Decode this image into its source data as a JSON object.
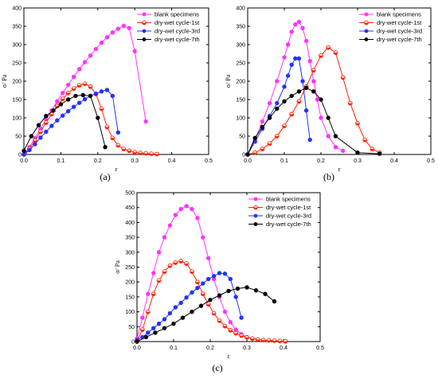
{
  "colors": {
    "blank": "#ff33ff",
    "cycle1": "#ff2200",
    "cycle3": "#2233ff",
    "cycle7": "#000000"
  },
  "chart_data": [
    {
      "type": "line",
      "caption": "(a)",
      "xlabel": "ε",
      "ylabel": "σ/ Pa",
      "xlim": [
        0,
        0.5
      ],
      "ylim": [
        0,
        400
      ],
      "xticks": [
        "0.0",
        "0.1",
        "0.2",
        "0.3",
        "0.4",
        "0.5"
      ],
      "yticks": [
        "0",
        "50",
        "100",
        "150",
        "200",
        "250",
        "300",
        "350",
        "400"
      ],
      "legend_position": "top-right",
      "series": [
        {
          "name": "blank specimens",
          "color_key": "blank",
          "marker": "filled-circle",
          "x": [
            0.003,
            0.015,
            0.03,
            0.045,
            0.06,
            0.075,
            0.09,
            0.105,
            0.12,
            0.135,
            0.15,
            0.165,
            0.18,
            0.195,
            0.21,
            0.225,
            0.24,
            0.255,
            0.27,
            0.285,
            0.3,
            0.33
          ],
          "y": [
            5,
            20,
            45,
            70,
            95,
            120,
            145,
            168,
            190,
            212,
            233,
            252,
            270,
            288,
            305,
            320,
            333,
            343,
            351,
            345,
            282,
            90
          ]
        },
        {
          "name": "dry-wet cycle-1st",
          "color_key": "cycle1",
          "marker": "half-circle",
          "x": [
            0.0,
            0.015,
            0.03,
            0.045,
            0.06,
            0.075,
            0.09,
            0.105,
            0.12,
            0.135,
            0.15,
            0.165,
            0.18,
            0.195,
            0.21,
            0.225,
            0.24,
            0.255,
            0.27,
            0.285,
            0.3,
            0.315,
            0.33,
            0.345,
            0.36
          ],
          "y": [
            0,
            15,
            38,
            62,
            87,
            110,
            132,
            152,
            168,
            180,
            189,
            193,
            185,
            165,
            125,
            75,
            45,
            25,
            15,
            10,
            6,
            4,
            3,
            2,
            1
          ]
        },
        {
          "name": "dry-wet cycle-3rd",
          "color_key": "cycle3",
          "marker": "filled-circle",
          "x": [
            0.0,
            0.015,
            0.03,
            0.045,
            0.06,
            0.075,
            0.09,
            0.105,
            0.12,
            0.135,
            0.15,
            0.165,
            0.18,
            0.195,
            0.21,
            0.225,
            0.24,
            0.255
          ],
          "y": [
            0,
            12,
            28,
            46,
            62,
            78,
            93,
            106,
            118,
            130,
            141,
            151,
            160,
            166,
            172,
            176,
            160,
            60
          ]
        },
        {
          "name": "dry-wet cycle-7th",
          "color_key": "cycle7",
          "marker": "filled-circle",
          "x": [
            0.0,
            0.02,
            0.04,
            0.06,
            0.08,
            0.1,
            0.12,
            0.14,
            0.16,
            0.18,
            0.2,
            0.22
          ],
          "y": [
            10,
            50,
            80,
            105,
            120,
            137,
            150,
            160,
            162,
            160,
            100,
            20
          ]
        }
      ]
    },
    {
      "type": "line",
      "caption": "(b)",
      "xlabel": "ε",
      "ylabel": "σ/ Pa",
      "xlim": [
        0,
        0.5
      ],
      "ylim": [
        0,
        400
      ],
      "xticks": [
        "0.0",
        "0.1",
        "0.2",
        "0.3",
        "0.4",
        "0.5"
      ],
      "yticks": [
        "0",
        "50",
        "100",
        "150",
        "200",
        "250",
        "300",
        "350",
        "400"
      ],
      "legend_position": "top-right",
      "series": [
        {
          "name": "blank specimens",
          "color_key": "blank",
          "marker": "filled-circle",
          "x": [
            0.0,
            0.02,
            0.04,
            0.06,
            0.08,
            0.1,
            0.11,
            0.12,
            0.13,
            0.14,
            0.15,
            0.16,
            0.17,
            0.18,
            0.19,
            0.2,
            0.22,
            0.24,
            0.26
          ],
          "y": [
            0,
            40,
            90,
            140,
            200,
            265,
            300,
            335,
            355,
            362,
            345,
            310,
            255,
            200,
            150,
            100,
            50,
            20,
            10
          ]
        },
        {
          "name": "dry-wet cycle-1st",
          "color_key": "cycle1",
          "marker": "half-circle",
          "x": [
            0.0,
            0.02,
            0.04,
            0.06,
            0.08,
            0.1,
            0.12,
            0.14,
            0.16,
            0.18,
            0.2,
            0.22,
            0.24,
            0.26,
            0.28,
            0.3,
            0.32,
            0.34,
            0.36
          ],
          "y": [
            0,
            5,
            15,
            30,
            50,
            78,
            110,
            145,
            185,
            230,
            270,
            292,
            278,
            210,
            140,
            85,
            40,
            15,
            5
          ]
        },
        {
          "name": "dry-wet cycle-3rd",
          "color_key": "cycle3",
          "marker": "filled-circle",
          "x": [
            0.0,
            0.02,
            0.04,
            0.06,
            0.08,
            0.1,
            0.11,
            0.12,
            0.13,
            0.14,
            0.15,
            0.16,
            0.17
          ],
          "y": [
            0,
            35,
            70,
            105,
            140,
            185,
            215,
            245,
            262,
            262,
            200,
            120,
            40
          ]
        },
        {
          "name": "dry-wet cycle-7th",
          "color_key": "cycle7",
          "marker": "filled-circle",
          "x": [
            0.0,
            0.02,
            0.04,
            0.06,
            0.08,
            0.1,
            0.12,
            0.14,
            0.16,
            0.18,
            0.2,
            0.22,
            0.24,
            0.3,
            0.36
          ],
          "y": [
            0,
            45,
            75,
            100,
            125,
            145,
            160,
            172,
            182,
            172,
            150,
            100,
            50,
            5,
            2
          ]
        }
      ]
    },
    {
      "type": "line",
      "caption": "(c)",
      "xlabel": "ε",
      "ylabel": "σ/ Pa",
      "xlim": [
        0,
        0.5
      ],
      "ylim": [
        0,
        500
      ],
      "xticks": [
        "0.0",
        "0.1",
        "0.2",
        "0.3",
        "0.4",
        "0.5"
      ],
      "yticks": [
        "0",
        "50",
        "100",
        "150",
        "200",
        "250",
        "300",
        "350",
        "400",
        "450",
        "500"
      ],
      "legend_position": "top-right",
      "series": [
        {
          "name": "blank specimens",
          "color_key": "blank",
          "marker": "filled-circle",
          "x": [
            0.0,
            0.015,
            0.03,
            0.045,
            0.06,
            0.075,
            0.09,
            0.105,
            0.12,
            0.135,
            0.15,
            0.165,
            0.18,
            0.195,
            0.21,
            0.225,
            0.24,
            0.255,
            0.27,
            0.285,
            0.3,
            0.315,
            0.33,
            0.345,
            0.36,
            0.375,
            0.39,
            0.405
          ],
          "y": [
            10,
            80,
            160,
            230,
            300,
            350,
            390,
            425,
            445,
            455,
            445,
            415,
            350,
            280,
            210,
            150,
            100,
            65,
            40,
            25,
            15,
            10,
            7,
            5,
            4,
            3,
            2,
            1
          ]
        },
        {
          "name": "dry-wet cycle-1st",
          "color_key": "cycle1",
          "marker": "half-circle",
          "x": [
            0.0,
            0.015,
            0.03,
            0.045,
            0.06,
            0.075,
            0.09,
            0.105,
            0.12,
            0.135,
            0.15,
            0.165,
            0.18,
            0.195,
            0.21,
            0.225,
            0.24,
            0.255,
            0.27,
            0.285,
            0.3,
            0.315,
            0.33,
            0.345,
            0.36,
            0.375,
            0.39,
            0.405
          ],
          "y": [
            0,
            40,
            100,
            160,
            205,
            235,
            255,
            265,
            270,
            262,
            235,
            200,
            160,
            125,
            95,
            70,
            52,
            38,
            28,
            20,
            14,
            10,
            7,
            5,
            4,
            3,
            2,
            1
          ]
        },
        {
          "name": "dry-wet cycle-3rd",
          "color_key": "cycle3",
          "marker": "filled-circle",
          "x": [
            0.0,
            0.015,
            0.03,
            0.045,
            0.06,
            0.075,
            0.09,
            0.105,
            0.12,
            0.135,
            0.15,
            0.165,
            0.18,
            0.195,
            0.21,
            0.225,
            0.24,
            0.255,
            0.27,
            0.285
          ],
          "y": [
            5,
            15,
            30,
            45,
            60,
            75,
            95,
            115,
            130,
            148,
            165,
            180,
            195,
            210,
            220,
            230,
            228,
            210,
            150,
            80
          ]
        },
        {
          "name": "dry-wet cycle-7th",
          "color_key": "cycle7",
          "marker": "filled-circle",
          "x": [
            0.0,
            0.025,
            0.05,
            0.075,
            0.1,
            0.125,
            0.15,
            0.175,
            0.2,
            0.225,
            0.25,
            0.275,
            0.3,
            0.325,
            0.35,
            0.375
          ],
          "y": [
            0,
            15,
            30,
            45,
            60,
            80,
            100,
            120,
            140,
            155,
            170,
            178,
            182,
            172,
            160,
            135
          ]
        }
      ]
    }
  ]
}
